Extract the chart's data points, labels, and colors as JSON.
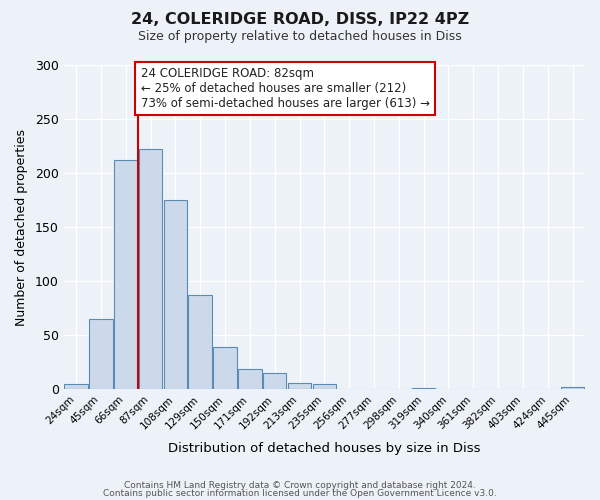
{
  "title": "24, COLERIDGE ROAD, DISS, IP22 4PZ",
  "subtitle": "Size of property relative to detached houses in Diss",
  "xlabel": "Distribution of detached houses by size in Diss",
  "ylabel": "Number of detached properties",
  "bar_values": [
    5,
    65,
    212,
    222,
    175,
    87,
    39,
    19,
    15,
    6,
    5,
    0,
    0,
    0,
    1,
    0,
    0,
    0,
    0,
    0,
    2
  ],
  "bar_labels": [
    "24sqm",
    "45sqm",
    "66sqm",
    "87sqm",
    "108sqm",
    "129sqm",
    "150sqm",
    "171sqm",
    "192sqm",
    "213sqm",
    "235sqm",
    "256sqm",
    "277sqm",
    "298sqm",
    "319sqm",
    "340sqm",
    "361sqm",
    "382sqm",
    "403sqm",
    "424sqm",
    "445sqm"
  ],
  "bar_facecolor": "#ccd9ea",
  "bar_edgecolor": "#5b8ab5",
  "ylim": [
    0,
    300
  ],
  "yticks": [
    0,
    50,
    100,
    150,
    200,
    250,
    300
  ],
  "vline_x_index": 3,
  "vline_color": "#cc0000",
  "annotation_text": "24 COLERIDGE ROAD: 82sqm\n← 25% of detached houses are smaller (212)\n73% of semi-detached houses are larger (613) →",
  "annotation_box_edgecolor": "#cc0000",
  "annotation_box_facecolor": "white",
  "bg_color": "#edf2f8",
  "grid_color": "#ffffff",
  "footer_line1": "Contains HM Land Registry data © Crown copyright and database right 2024.",
  "footer_line2": "Contains public sector information licensed under the Open Government Licence v3.0."
}
